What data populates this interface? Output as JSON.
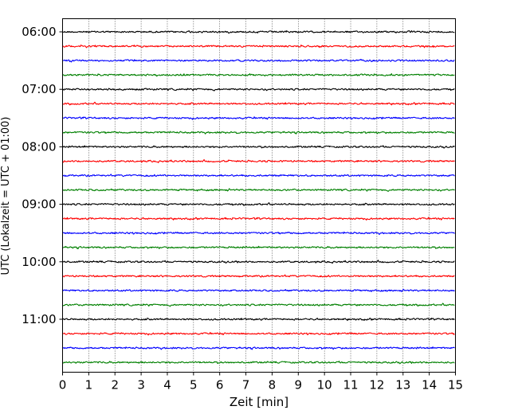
{
  "chart_data": {
    "type": "line",
    "title": "",
    "xlabel": "Zeit  [min]",
    "ylabel": "UTC (Lokalzeit = UTC + 01:00)",
    "xlim": [
      0,
      15
    ],
    "x_ticks": [
      0,
      1,
      2,
      3,
      4,
      5,
      6,
      7,
      8,
      9,
      10,
      11,
      12,
      13,
      14,
      15
    ],
    "x_tick_labels": [
      "0",
      "1",
      "2",
      "3",
      "4",
      "5",
      "6",
      "7",
      "8",
      "9",
      "10",
      "11",
      "12",
      "13",
      "14",
      "15"
    ],
    "y_tick_labels": [
      "06:00",
      "07:00",
      "08:00",
      "09:00",
      "10:00",
      "11:00"
    ],
    "y_tick_trace_index": [
      0,
      4,
      8,
      12,
      16,
      20
    ],
    "trace_interval_minutes": 15,
    "trace_count": 24,
    "trace_start_times": [
      "06:00",
      "06:15",
      "06:30",
      "06:45",
      "07:00",
      "07:15",
      "07:30",
      "07:45",
      "08:00",
      "08:15",
      "08:30",
      "08:45",
      "09:00",
      "09:15",
      "09:30",
      "09:45",
      "10:00",
      "10:15",
      "10:30",
      "10:45",
      "11:00",
      "11:15",
      "11:30",
      "11:45"
    ],
    "trace_colors": [
      "#000000",
      "#ff0000",
      "#0000ff",
      "#008000"
    ],
    "vertical_grid": "dotted at each minute",
    "legend": "none"
  }
}
